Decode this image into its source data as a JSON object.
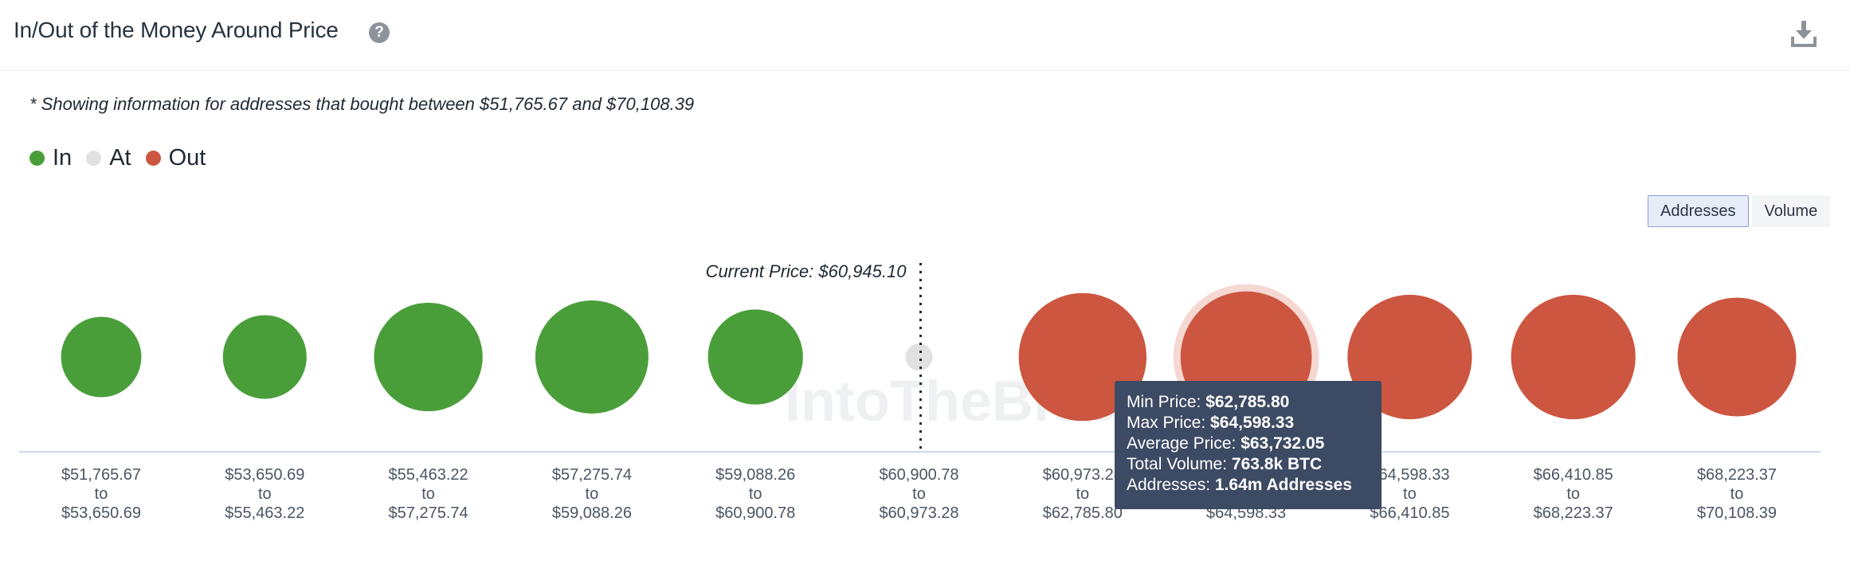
{
  "header": {
    "title": "In/Out of the Money Around Price",
    "help_icon": "question-circle-icon",
    "download_icon": "download-icon"
  },
  "note": "* Showing information for addresses that bought between $51,765.67 and $70,108.39",
  "legend": [
    {
      "label": "In",
      "color": "#4a9e3a"
    },
    {
      "label": "At",
      "color": "#e1e1e1"
    },
    {
      "label": "Out",
      "color": "#cc5640"
    }
  ],
  "toggle": {
    "addresses": "Addresses",
    "volume": "Volume",
    "selected": "Addresses"
  },
  "watermark": "IntoTheBlock",
  "chart_data": {
    "type": "scatter",
    "title": "In/Out of the Money Around Price",
    "current_price_label": "Current Price: $60,945.10",
    "categories": [
      {
        "from": "$51,765.67",
        "to": "$53,650.69",
        "status": "In"
      },
      {
        "from": "$53,650.69",
        "to": "$55,463.22",
        "status": "In"
      },
      {
        "from": "$55,463.22",
        "to": "$57,275.74",
        "status": "In"
      },
      {
        "from": "$57,275.74",
        "to": "$59,088.26",
        "status": "In"
      },
      {
        "from": "$59,088.26",
        "to": "$60,900.78",
        "status": "In"
      },
      {
        "from": "$60,900.78",
        "to": "$60,973.28",
        "status": "At"
      },
      {
        "from": "$60,973.28",
        "to": "$62,785.80",
        "status": "Out"
      },
      {
        "from": "$62,785.80",
        "to": "$64,598.33",
        "status": "Out"
      },
      {
        "from": "$64,598.33",
        "to": "$66,410.85",
        "status": "Out"
      },
      {
        "from": "$66,410.85",
        "to": "$68,223.37",
        "status": "Out"
      },
      {
        "from": "$68,223.37",
        "to": "$70,108.39",
        "status": "Out"
      }
    ],
    "relative_size": [
      0.71,
      0.74,
      0.96,
      1.0,
      0.84,
      0.24,
      1.13,
      1.16,
      1.1,
      1.1,
      1.05
    ],
    "hovered_index": 7,
    "tooltip": {
      "min_price_label": "Min Price:",
      "min_price": "$62,785.80",
      "max_price_label": "Max Price:",
      "max_price": "$64,598.33",
      "avg_price_label": "Average Price:",
      "avg_price": "$63,732.05",
      "volume_label": "Total Volume:",
      "volume": "763.8k BTC",
      "addresses_label": "Addresses:",
      "addresses": "1.64m Addresses"
    }
  }
}
